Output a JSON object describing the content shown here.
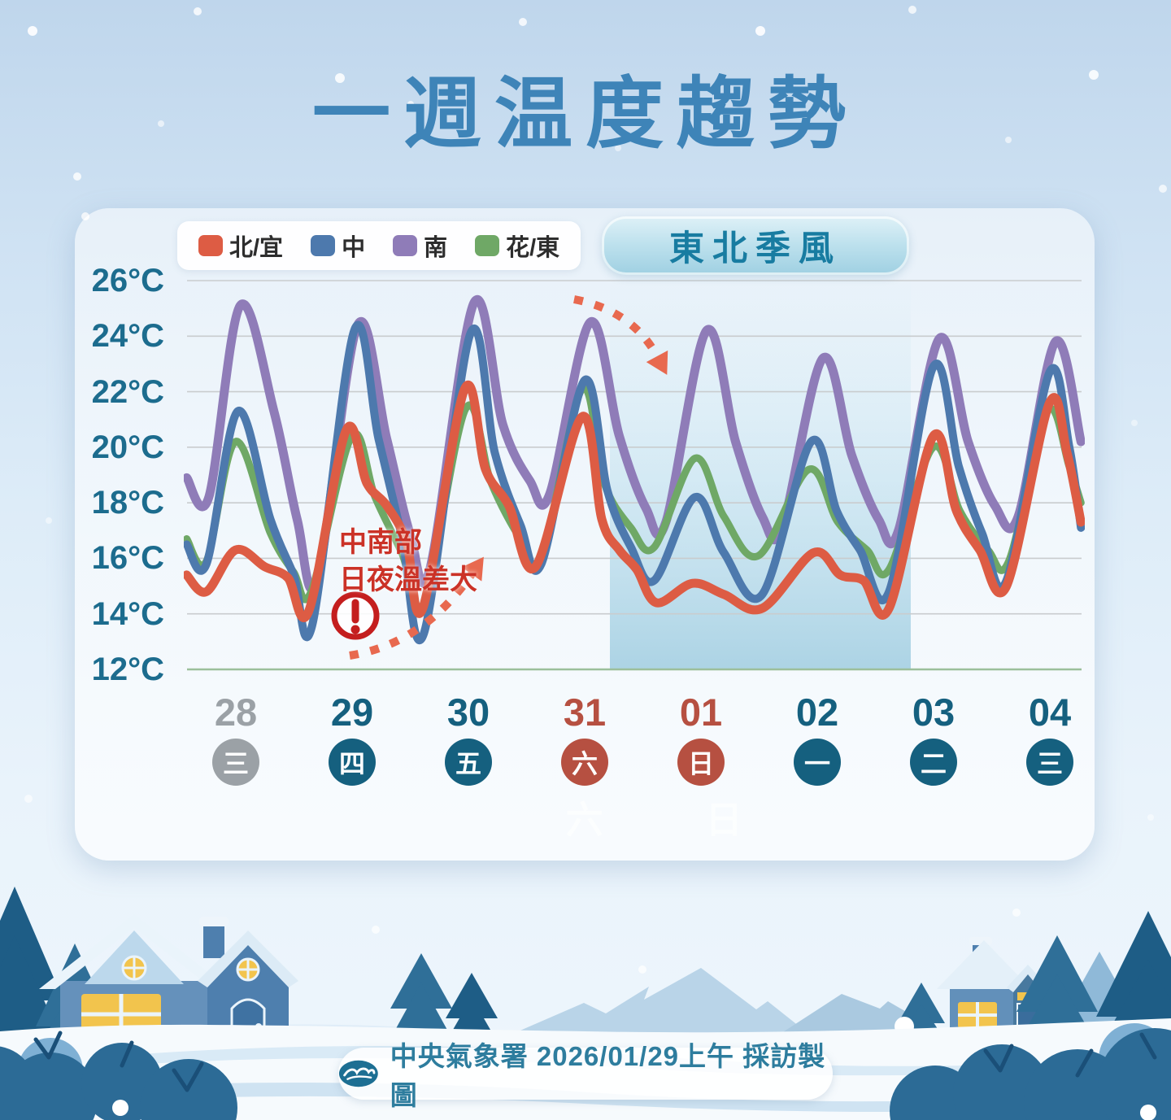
{
  "page": {
    "title": "一週温度趨勢"
  },
  "legend": {
    "items": [
      {
        "label": "北/宜",
        "color": "#dd5c44"
      },
      {
        "label": "中",
        "color": "#4d79ad"
      },
      {
        "label": "南",
        "color": "#8f7cb8"
      },
      {
        "label": "花/東",
        "color": "#6fa866"
      }
    ]
  },
  "badge": {
    "label": "東北季風"
  },
  "colors": {
    "gray": "#9ba1a6",
    "teal": "#15607f",
    "red": "#b65041",
    "title": "#3e84b8",
    "y_label": "#1c6c8e",
    "annotation": "#cb3227",
    "arrow": "#e8694f",
    "gridline": "#c9ccce",
    "baseline_green": "#9cbf9b",
    "shade_blue": "#a9d3e6"
  },
  "chart_data": {
    "type": "line",
    "title": "一週温度趨勢",
    "ylabel": "°C",
    "ylim": [
      12,
      26
    ],
    "y_ticks": [
      26,
      24,
      22,
      20,
      18,
      16,
      14,
      12
    ],
    "grid": true,
    "legend_position": "top-left",
    "days": [
      {
        "date": "28",
        "weekday": "三",
        "accent": "gray"
      },
      {
        "date": "29",
        "weekday": "四",
        "accent": "teal"
      },
      {
        "date": "30",
        "weekday": "五",
        "accent": "teal"
      },
      {
        "date": "31",
        "weekday": "六",
        "accent": "red"
      },
      {
        "date": "01",
        "weekday": "日",
        "accent": "red"
      },
      {
        "date": "02",
        "weekday": "一",
        "accent": "teal"
      },
      {
        "date": "03",
        "weekday": "二",
        "accent": "teal"
      },
      {
        "date": "04",
        "weekday": "三",
        "accent": "teal"
      }
    ],
    "highlight_region": {
      "label": "東北季風",
      "from_day": "31",
      "to_day": "02",
      "watermarks": [
        {
          "glyph": "六",
          "day_index": 3.55
        },
        {
          "day_index": 4.75,
          "glyph": "日"
        }
      ]
    },
    "annotation": {
      "lines": [
        "中南部",
        "日夜溫差大"
      ],
      "icon": "warning-exclamation"
    },
    "series": [
      {
        "name": "北/宜",
        "color": "#dd5c44",
        "width": 11,
        "points": [
          [
            0.13,
            15.4
          ],
          [
            0.3,
            14.8
          ],
          [
            0.55,
            16.3
          ],
          [
            0.8,
            15.7
          ],
          [
            1.0,
            15.3
          ],
          [
            1.18,
            14.1
          ],
          [
            1.5,
            20.6
          ],
          [
            1.68,
            18.7
          ],
          [
            1.85,
            17.9
          ],
          [
            2.02,
            16.6
          ],
          [
            2.16,
            14.2
          ],
          [
            2.52,
            22.1
          ],
          [
            2.7,
            19.2
          ],
          [
            2.9,
            17.9
          ],
          [
            3.13,
            15.7
          ],
          [
            3.53,
            21.1
          ],
          [
            3.7,
            17.4
          ],
          [
            3.85,
            16.3
          ],
          [
            4.0,
            15.6
          ],
          [
            4.17,
            14.4
          ],
          [
            4.48,
            15.1
          ],
          [
            4.75,
            14.7
          ],
          [
            5.08,
            14.2
          ],
          [
            5.52,
            16.2
          ],
          [
            5.75,
            15.4
          ],
          [
            5.95,
            15.2
          ],
          [
            6.17,
            14.2
          ],
          [
            6.55,
            20.4
          ],
          [
            6.75,
            17.7
          ],
          [
            6.95,
            16.3
          ],
          [
            7.18,
            15.0
          ],
          [
            7.55,
            21.6
          ],
          [
            7.7,
            19.8
          ],
          [
            7.82,
            17.3
          ]
        ]
      },
      {
        "name": "中",
        "color": "#4d79ad",
        "width": 10,
        "points": [
          [
            0.13,
            16.5
          ],
          [
            0.3,
            15.8
          ],
          [
            0.57,
            21.3
          ],
          [
            0.85,
            17.4
          ],
          [
            1.05,
            15.4
          ],
          [
            1.21,
            13.6
          ],
          [
            1.57,
            24.2
          ],
          [
            1.78,
            20.3
          ],
          [
            1.98,
            16.8
          ],
          [
            2.17,
            13.3
          ],
          [
            2.57,
            24.1
          ],
          [
            2.78,
            19.8
          ],
          [
            3.0,
            17.2
          ],
          [
            3.18,
            15.8
          ],
          [
            3.55,
            22.4
          ],
          [
            3.75,
            18.4
          ],
          [
            3.95,
            16.4
          ],
          [
            4.15,
            15.2
          ],
          [
            4.5,
            18.2
          ],
          [
            4.75,
            16.2
          ],
          [
            5.08,
            14.7
          ],
          [
            5.5,
            20.2
          ],
          [
            5.72,
            17.7
          ],
          [
            5.92,
            16.3
          ],
          [
            6.17,
            14.8
          ],
          [
            6.55,
            22.9
          ],
          [
            6.77,
            19.3
          ],
          [
            6.97,
            16.9
          ],
          [
            7.18,
            15.2
          ],
          [
            7.55,
            22.7
          ],
          [
            7.72,
            20.0
          ],
          [
            7.82,
            17.1
          ]
        ]
      },
      {
        "name": "南",
        "color": "#8f7cb8",
        "width": 11,
        "points": [
          [
            0.13,
            18.9
          ],
          [
            0.32,
            18.2
          ],
          [
            0.59,
            25.1
          ],
          [
            0.88,
            21.3
          ],
          [
            1.08,
            17.4
          ],
          [
            1.25,
            15.2
          ],
          [
            1.6,
            24.4
          ],
          [
            1.85,
            20.3
          ],
          [
            2.05,
            16.9
          ],
          [
            2.22,
            15.6
          ],
          [
            2.6,
            25.2
          ],
          [
            2.85,
            20.8
          ],
          [
            3.08,
            18.8
          ],
          [
            3.25,
            18.3
          ],
          [
            3.6,
            24.5
          ],
          [
            3.85,
            20.4
          ],
          [
            4.08,
            17.8
          ],
          [
            4.25,
            17.3
          ],
          [
            4.6,
            24.2
          ],
          [
            4.85,
            20.2
          ],
          [
            5.08,
            17.5
          ],
          [
            5.25,
            17.1
          ],
          [
            5.6,
            23.2
          ],
          [
            5.85,
            19.7
          ],
          [
            6.08,
            17.4
          ],
          [
            6.25,
            17.0
          ],
          [
            6.6,
            23.9
          ],
          [
            6.85,
            20.2
          ],
          [
            7.08,
            17.9
          ],
          [
            7.28,
            17.5
          ],
          [
            7.6,
            23.8
          ],
          [
            7.82,
            20.2
          ]
        ]
      },
      {
        "name": "花/東",
        "color": "#6fa866",
        "width": 9,
        "points": [
          [
            0.13,
            16.7
          ],
          [
            0.3,
            15.9
          ],
          [
            0.55,
            20.2
          ],
          [
            0.85,
            16.9
          ],
          [
            1.05,
            15.5
          ],
          [
            1.2,
            14.8
          ],
          [
            1.55,
            20.4
          ],
          [
            1.75,
            18.2
          ],
          [
            1.98,
            16.2
          ],
          [
            2.17,
            14.4
          ],
          [
            2.53,
            21.4
          ],
          [
            2.75,
            18.7
          ],
          [
            3.0,
            16.7
          ],
          [
            3.18,
            16.0
          ],
          [
            3.53,
            22.1
          ],
          [
            3.72,
            18.7
          ],
          [
            3.95,
            17.1
          ],
          [
            4.15,
            16.4
          ],
          [
            4.5,
            19.6
          ],
          [
            4.75,
            17.5
          ],
          [
            5.05,
            16.1
          ],
          [
            5.48,
            19.2
          ],
          [
            5.73,
            17.3
          ],
          [
            5.98,
            16.3
          ],
          [
            6.17,
            15.6
          ],
          [
            6.55,
            20.0
          ],
          [
            6.78,
            17.7
          ],
          [
            7.02,
            16.3
          ],
          [
            7.2,
            15.9
          ],
          [
            7.53,
            21.3
          ],
          [
            7.72,
            19.3
          ],
          [
            7.82,
            18.0
          ]
        ]
      }
    ]
  },
  "footer": {
    "text": "中央氣象署 2026/01/29上午 採訪製圖",
    "logo": "cwa-wave-logo"
  }
}
